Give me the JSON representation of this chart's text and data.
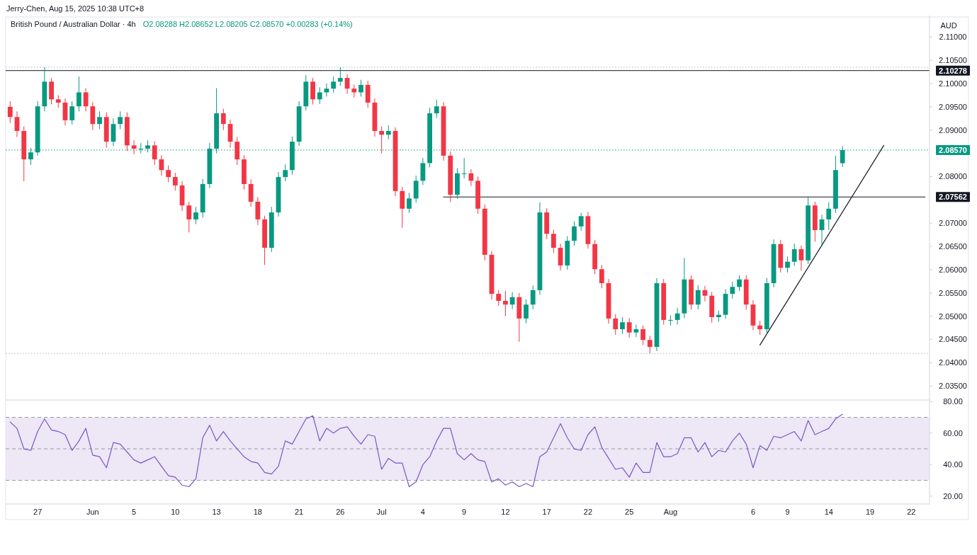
{
  "chart_data": [
    {
      "type": "candlestick",
      "title": "British Pound / Australian Dollar · 4h",
      "subtitle": "O2.08288 H2.08652 L2.08205 C2.08570 +0.00283 (+0.14%)",
      "ylabel": "AUD",
      "annotations": [
        "Jerry-Chen, Aug 15, 2025 10:38 UTC+8"
      ],
      "categories": [
        null,
        null,
        null,
        null,
        null,
        null,
        null,
        null,
        null,
        null,
        null,
        null,
        null,
        null,
        null,
        null,
        null,
        null,
        null,
        null,
        null,
        null,
        null,
        null,
        null,
        null,
        null,
        null,
        null,
        null,
        null,
        null,
        null,
        null,
        null,
        null,
        null,
        null,
        null,
        null,
        null,
        null,
        null,
        null,
        null,
        null,
        null,
        null,
        null,
        null,
        null,
        null,
        null,
        null,
        null,
        null,
        null,
        null,
        null,
        null,
        null,
        null,
        null,
        null,
        null,
        null,
        null,
        null,
        null,
        null,
        null,
        null,
        null,
        null,
        null,
        null,
        null,
        null,
        null,
        null,
        null,
        null,
        null,
        null,
        null,
        null,
        null,
        null,
        null,
        null,
        null,
        null,
        null,
        null,
        null,
        null,
        null,
        null,
        null,
        null,
        null,
        null,
        null,
        null,
        null,
        null,
        null,
        null,
        null,
        null,
        null,
        null,
        null,
        null,
        null,
        null,
        null,
        null,
        null,
        null,
        null,
        null,
        null,
        null,
        null,
        null,
        null,
        null,
        null,
        null,
        null,
        null,
        null,
        null
      ],
      "ohlc": [
        [
          2.095,
          2.0962,
          2.0915,
          2.0928
        ],
        [
          2.0928,
          2.094,
          2.0885,
          2.0898
        ],
        [
          2.0898,
          2.0908,
          2.079,
          2.0837
        ],
        [
          2.0837,
          2.0862,
          2.0825,
          2.0852
        ],
        [
          2.0852,
          2.0962,
          2.0845,
          2.0951
        ],
        [
          2.0951,
          2.1035,
          2.094,
          2.1004
        ],
        [
          2.1004,
          2.1012,
          2.0955,
          2.0966
        ],
        [
          2.0966,
          2.0975,
          2.0948,
          2.0959
        ],
        [
          2.0959,
          2.0968,
          2.091,
          2.0921
        ],
        [
          2.0921,
          2.0962,
          2.0912,
          2.0951
        ],
        [
          2.0951,
          2.1015,
          2.094,
          2.0981
        ],
        [
          2.0981,
          2.099,
          2.094,
          2.0951
        ],
        [
          2.0951,
          2.096,
          2.09,
          2.0913
        ],
        [
          2.0913,
          2.094,
          2.0902,
          2.0928
        ],
        [
          2.0928,
          2.0938,
          2.0862,
          2.0875
        ],
        [
          2.0875,
          2.0925,
          2.0866,
          2.0913
        ],
        [
          2.0913,
          2.094,
          2.0902,
          2.0928
        ],
        [
          2.0928,
          2.0938,
          2.0855,
          2.0867
        ],
        [
          2.0867,
          2.0878,
          2.0848,
          2.086
        ],
        [
          2.086,
          2.0872,
          2.085,
          2.086
        ],
        [
          2.086,
          2.0878,
          2.0852,
          2.0867
        ],
        [
          2.0867,
          2.0876,
          2.0825,
          2.0837
        ],
        [
          2.0837,
          2.0846,
          2.0802,
          2.0814
        ],
        [
          2.0814,
          2.0824,
          2.0788,
          2.0799
        ],
        [
          2.0799,
          2.0808,
          2.077,
          2.0781
        ],
        [
          2.0781,
          2.079,
          2.0726,
          2.0738
        ],
        [
          2.0738,
          2.0746,
          2.068,
          2.0708
        ],
        [
          2.0708,
          2.0735,
          2.0698,
          2.0723
        ],
        [
          2.0723,
          2.0795,
          2.0712,
          2.0784
        ],
        [
          2.0784,
          2.0872,
          2.0775,
          2.086
        ],
        [
          2.086,
          2.099,
          2.085,
          2.0936
        ],
        [
          2.0936,
          2.0946,
          2.09,
          2.0913
        ],
        [
          2.0913,
          2.0922,
          2.0862,
          2.0875
        ],
        [
          2.0875,
          2.0885,
          2.0825,
          2.0837
        ],
        [
          2.0837,
          2.0846,
          2.0772,
          2.0784
        ],
        [
          2.0784,
          2.0794,
          2.0735,
          2.0746
        ],
        [
          2.0746,
          2.0756,
          2.0696,
          2.0708
        ],
        [
          2.0708,
          2.0716,
          2.061,
          2.0647
        ],
        [
          2.0647,
          2.0735,
          2.0638,
          2.0723
        ],
        [
          2.0723,
          2.081,
          2.0714,
          2.0799
        ],
        [
          2.0799,
          2.0826,
          2.079,
          2.0814
        ],
        [
          2.0814,
          2.0886,
          2.0804,
          2.0875
        ],
        [
          2.0875,
          2.0962,
          2.0866,
          2.0951
        ],
        [
          2.0951,
          2.1018,
          2.0942,
          2.1004
        ],
        [
          2.1004,
          2.1012,
          2.0955,
          2.0966
        ],
        [
          2.0966,
          2.0992,
          2.0956,
          2.0981
        ],
        [
          2.0981,
          2.1,
          2.0972,
          2.0989
        ],
        [
          2.0989,
          2.1015,
          2.098,
          2.1004
        ],
        [
          2.1004,
          2.1035,
          2.0995,
          2.1012
        ],
        [
          2.1012,
          2.102,
          2.0978,
          2.0989
        ],
        [
          2.0989,
          2.0998,
          2.097,
          2.0981
        ],
        [
          2.0981,
          2.1008,
          2.0972,
          2.0997
        ],
        [
          2.0997,
          2.1006,
          2.0948,
          2.0959
        ],
        [
          2.0959,
          2.0968,
          2.0886,
          2.0898
        ],
        [
          2.0898,
          2.0908,
          2.085,
          2.089
        ],
        [
          2.089,
          2.091,
          2.088,
          2.0898
        ],
        [
          2.0898,
          2.0906,
          2.0758,
          2.0769
        ],
        [
          2.0769,
          2.0778,
          2.069,
          2.0731
        ],
        [
          2.0731,
          2.0765,
          2.0722,
          2.0753
        ],
        [
          2.0753,
          2.0802,
          2.0744,
          2.0791
        ],
        [
          2.0791,
          2.084,
          2.0782,
          2.0829
        ],
        [
          2.0829,
          2.0948,
          2.082,
          2.0936
        ],
        [
          2.0936,
          2.0965,
          2.0926,
          2.0951
        ],
        [
          2.0951,
          2.096,
          2.0834,
          2.0845
        ],
        [
          2.0845,
          2.0854,
          2.0745,
          2.0761
        ],
        [
          2.0761,
          2.0818,
          2.0752,
          2.0807
        ],
        [
          2.0807,
          2.084,
          2.0796,
          2.0807
        ],
        [
          2.0807,
          2.0816,
          2.078,
          2.0791
        ],
        [
          2.0791,
          2.08,
          2.072,
          2.0731
        ],
        [
          2.0731,
          2.074,
          2.062,
          2.0632
        ],
        [
          2.0632,
          2.064,
          2.0536,
          2.0548
        ],
        [
          2.0548,
          2.0556,
          2.0522,
          2.0533
        ],
        [
          2.0533,
          2.0555,
          2.05,
          2.0525
        ],
        [
          2.0525,
          2.0552,
          2.0515,
          2.0541
        ],
        [
          2.0541,
          2.055,
          2.0445,
          2.0495
        ],
        [
          2.0495,
          2.0536,
          2.0485,
          2.0525
        ],
        [
          2.0525,
          2.0566,
          2.0515,
          2.0556
        ],
        [
          2.0556,
          2.0745,
          2.0546,
          2.0723
        ],
        [
          2.0723,
          2.0732,
          2.0666,
          2.0677
        ],
        [
          2.0677,
          2.0686,
          2.0636,
          2.0647
        ],
        [
          2.0647,
          2.0656,
          2.0598,
          2.0609
        ],
        [
          2.0609,
          2.0672,
          2.06,
          2.0662
        ],
        [
          2.0662,
          2.0704,
          2.0652,
          2.0693
        ],
        [
          2.0693,
          2.0722,
          2.0684,
          2.0715
        ],
        [
          2.0715,
          2.0724,
          2.0645,
          2.0655
        ],
        [
          2.0655,
          2.0664,
          2.059,
          2.0601
        ],
        [
          2.0601,
          2.061,
          2.056,
          2.0571
        ],
        [
          2.0571,
          2.058,
          2.0484,
          2.0495
        ],
        [
          2.0495,
          2.0504,
          2.046,
          2.0472
        ],
        [
          2.0472,
          2.0498,
          2.0462,
          2.0487
        ],
        [
          2.0487,
          2.0496,
          2.0454,
          2.0465
        ],
        [
          2.0465,
          2.0482,
          2.0455,
          2.0472
        ],
        [
          2.0472,
          2.048,
          2.0438,
          2.0449
        ],
        [
          2.0449,
          2.0458,
          2.042,
          2.0434
        ],
        [
          2.0434,
          2.0582,
          2.0425,
          2.0571
        ],
        [
          2.0571,
          2.058,
          2.0482,
          2.0492
        ],
        [
          2.0492,
          2.0502,
          2.048,
          2.0492
        ],
        [
          2.0492,
          2.0518,
          2.0482,
          2.0506
        ],
        [
          2.0506,
          2.0625,
          2.0496,
          2.0579
        ],
        [
          2.0579,
          2.0588,
          2.0514,
          2.0525
        ],
        [
          2.0525,
          2.0566,
          2.0515,
          2.0556
        ],
        [
          2.0556,
          2.0565,
          2.0532,
          2.0544
        ],
        [
          2.0544,
          2.0552,
          2.0486,
          2.0498
        ],
        [
          2.0498,
          2.0512,
          2.0488,
          2.0503
        ],
        [
          2.0503,
          2.0558,
          2.0494,
          2.0548
        ],
        [
          2.0548,
          2.0574,
          2.0538,
          2.0563
        ],
        [
          2.0563,
          2.0588,
          2.0554,
          2.0579
        ],
        [
          2.0579,
          2.0588,
          2.0514,
          2.0525
        ],
        [
          2.0525,
          2.0534,
          2.047,
          2.048
        ],
        [
          2.048,
          2.049,
          2.046,
          2.0472
        ],
        [
          2.0472,
          2.0582,
          2.0462,
          2.0571
        ],
        [
          2.0571,
          2.0665,
          2.0562,
          2.0655
        ],
        [
          2.0655,
          2.0664,
          2.0594,
          2.0604
        ],
        [
          2.0604,
          2.0628,
          2.0594,
          2.0617
        ],
        [
          2.0617,
          2.0656,
          2.0608,
          2.0644
        ],
        [
          2.0644,
          2.0652,
          2.0598,
          2.062
        ],
        [
          2.062,
          2.0755,
          2.0612,
          2.0738
        ],
        [
          2.0738,
          2.0746,
          2.066,
          2.0685
        ],
        [
          2.0685,
          2.0718,
          2.065,
          2.0708
        ],
        [
          2.0708,
          2.0745,
          2.0685,
          2.0731
        ],
        [
          2.0731,
          2.0845,
          2.0722,
          2.0814
        ],
        [
          2.08288,
          2.08652,
          2.08205,
          2.0857
        ],
        null,
        null,
        null,
        null,
        null,
        null,
        null,
        null,
        null,
        null,
        null,
        null
      ],
      "series": [
        {
          "type": "line",
          "name": "2.07562",
          "color": "#131722",
          "values": [
            null,
            null,
            null,
            null,
            null,
            null,
            null,
            null,
            null,
            null,
            null,
            null,
            null,
            null,
            null,
            null,
            null,
            null,
            null,
            null,
            null,
            null,
            null,
            null,
            null,
            null,
            null,
            null,
            null,
            null,
            null,
            null,
            null,
            null,
            null,
            null,
            null,
            null,
            null,
            null,
            null,
            null,
            null,
            null,
            null,
            null,
            null,
            null,
            null,
            null,
            null,
            null,
            null,
            null,
            null,
            null,
            null,
            null,
            null,
            null,
            null,
            null,
            null,
            2.07562,
            null,
            null,
            null,
            null,
            null,
            null,
            null,
            null,
            null,
            null,
            null,
            null,
            null,
            null,
            null,
            null,
            null,
            null,
            null,
            null,
            null,
            null,
            null,
            null,
            null,
            null,
            null,
            null,
            null,
            null,
            null,
            null,
            null,
            null,
            null,
            null,
            null,
            null,
            null,
            null,
            null,
            null,
            null,
            null,
            null,
            null,
            null,
            null,
            null,
            null,
            null,
            null,
            null,
            null,
            null,
            null,
            null,
            null,
            null,
            null,
            null,
            null,
            null,
            null,
            null,
            null,
            null,
            null,
            null,
            2.07562
          ]
        },
        {
          "type": "line",
          "color": "#131722",
          "values": [
            null,
            null,
            null,
            null,
            null,
            null,
            null,
            null,
            null,
            null,
            null,
            null,
            null,
            null,
            null,
            null,
            null,
            null,
            null,
            null,
            null,
            null,
            null,
            null,
            null,
            null,
            null,
            null,
            null,
            null,
            null,
            null,
            null,
            null,
            null,
            null,
            null,
            null,
            null,
            null,
            null,
            null,
            null,
            null,
            null,
            null,
            null,
            null,
            null,
            null,
            null,
            null,
            null,
            null,
            null,
            null,
            null,
            null,
            null,
            null,
            null,
            null,
            null,
            null,
            null,
            null,
            null,
            null,
            null,
            null,
            null,
            null,
            null,
            null,
            null,
            null,
            null,
            null,
            null,
            null,
            null,
            null,
            null,
            null,
            null,
            null,
            null,
            null,
            null,
            null,
            null,
            null,
            null,
            null,
            null,
            null,
            null,
            null,
            null,
            null,
            null,
            null,
            null,
            null,
            null,
            null,
            null,
            null,
            null,
            2.0438,
            null,
            null,
            null,
            null,
            null,
            null,
            null,
            null,
            null,
            null,
            null,
            null,
            null,
            null,
            null,
            null,
            null,
            2.0867,
            null,
            null,
            null,
            null,
            null,
            null
          ]
        }
      ],
      "ylim": [
        2.032,
        2.1146
      ],
      "yticks": [
        {
          "value": 2.035,
          "label": "2.03500"
        },
        {
          "value": 2.04,
          "label": "2.04000"
        },
        {
          "value": 2.045,
          "label": "2.04500"
        },
        {
          "value": 2.05,
          "label": "2.05000"
        },
        {
          "value": 2.055,
          "label": "2.05500"
        },
        {
          "value": 2.06,
          "label": "2.06000"
        },
        {
          "value": 2.065,
          "label": "2.06500"
        },
        {
          "value": 2.07,
          "label": "2.07000"
        },
        {
          "value": 2.08,
          "label": "2.08000"
        },
        {
          "value": 2.09,
          "label": "2.09000"
        },
        {
          "value": 2.095,
          "label": "2.09500"
        },
        {
          "value": 2.1,
          "label": "2.10000"
        },
        {
          "value": 2.105,
          "label": "2.10500"
        },
        {
          "value": 2.11,
          "label": "2.11000"
        }
      ],
      "ref_lines": [
        {
          "axis": "y",
          "value": 2.10278,
          "label": "2.10278",
          "color": "#131722"
        },
        {
          "axis": "y",
          "value": 2.0857,
          "label": "2.08570",
          "color": "#089981",
          "line_style": "dotted"
        },
        {
          "axis": "y",
          "value": 2.1035,
          "color": "#b2b5be",
          "line_style": "dotted"
        },
        {
          "axis": "y",
          "value": 2.042,
          "color": "#b2b5be",
          "line_style": "dotted"
        }
      ],
      "tick_labels": "y"
    },
    {
      "type": "line",
      "categories": [
        null,
        null,
        null,
        null,
        "27",
        null,
        null,
        null,
        null,
        null,
        null,
        null,
        "Jun",
        null,
        null,
        null,
        null,
        null,
        "5",
        null,
        null,
        null,
        null,
        null,
        "10",
        null,
        null,
        null,
        null,
        null,
        "13",
        null,
        null,
        null,
        null,
        null,
        "18",
        null,
        null,
        null,
        null,
        null,
        "21",
        null,
        null,
        null,
        null,
        null,
        "26",
        null,
        null,
        null,
        null,
        null,
        "Jul",
        null,
        null,
        null,
        null,
        null,
        "4",
        null,
        null,
        null,
        null,
        null,
        "9",
        null,
        null,
        null,
        null,
        null,
        "12",
        null,
        null,
        null,
        null,
        null,
        "17",
        null,
        null,
        null,
        null,
        null,
        "22",
        null,
        null,
        null,
        null,
        null,
        "25",
        null,
        null,
        null,
        null,
        null,
        "Aug",
        null,
        null,
        null,
        null,
        null,
        null,
        null,
        null,
        null,
        null,
        null,
        "6",
        null,
        null,
        null,
        null,
        "9",
        null,
        null,
        null,
        null,
        null,
        "14",
        null,
        null,
        null,
        null,
        null,
        "19",
        null,
        null,
        null,
        null,
        null,
        "22",
        null,
        null
      ],
      "series": [
        {
          "color": "#7e57c2",
          "values": [
            67,
            63,
            50,
            49,
            61,
            69,
            62,
            61,
            59,
            49,
            55,
            63,
            46,
            45,
            38,
            54,
            53,
            48,
            43,
            41,
            43,
            45,
            39,
            33,
            32,
            27,
            26,
            31,
            57,
            65,
            55,
            61,
            55,
            50,
            45,
            42,
            41,
            35,
            34,
            39,
            55,
            53,
            61,
            69,
            71,
            55,
            63,
            60,
            63,
            64,
            58,
            53,
            59,
            58,
            37,
            44,
            41,
            41,
            26,
            29,
            40,
            45,
            55,
            63,
            63,
            47,
            43,
            47,
            43,
            42,
            29,
            31,
            27,
            29,
            26,
            28,
            26,
            45,
            48,
            57,
            66,
            57,
            50,
            49,
            59,
            64,
            51,
            44,
            37,
            38,
            32,
            41,
            35,
            35,
            54,
            45,
            45,
            47,
            57,
            57,
            48,
            54,
            45,
            49,
            48,
            55,
            60,
            53,
            38,
            52,
            49,
            58,
            57,
            59,
            61,
            55,
            68,
            59,
            61,
            63,
            69,
            72,
            null,
            null,
            null,
            null,
            null,
            null,
            null,
            null,
            null,
            null,
            null,
            null
          ]
        }
      ],
      "ylim": [
        15,
        81
      ],
      "yticks": [
        {
          "value": 20,
          "label": "20.00"
        },
        {
          "value": 40,
          "label": "40.00"
        },
        {
          "value": 60,
          "label": "60.00"
        },
        {
          "value": 80,
          "label": "80.00"
        }
      ],
      "bands": [
        {
          "axis": "y",
          "from": 30,
          "to": 70,
          "color": "#ede7f6"
        }
      ],
      "ref_lines": [
        {
          "axis": "y",
          "value": 70,
          "color": "#9598a1",
          "line_style": "dashed"
        },
        {
          "axis": "y",
          "value": 50,
          "color": "#9598a1",
          "line_style": "dashed"
        },
        {
          "axis": "y",
          "value": 30,
          "color": "#9598a1",
          "line_style": "dashed"
        }
      ]
    }
  ]
}
